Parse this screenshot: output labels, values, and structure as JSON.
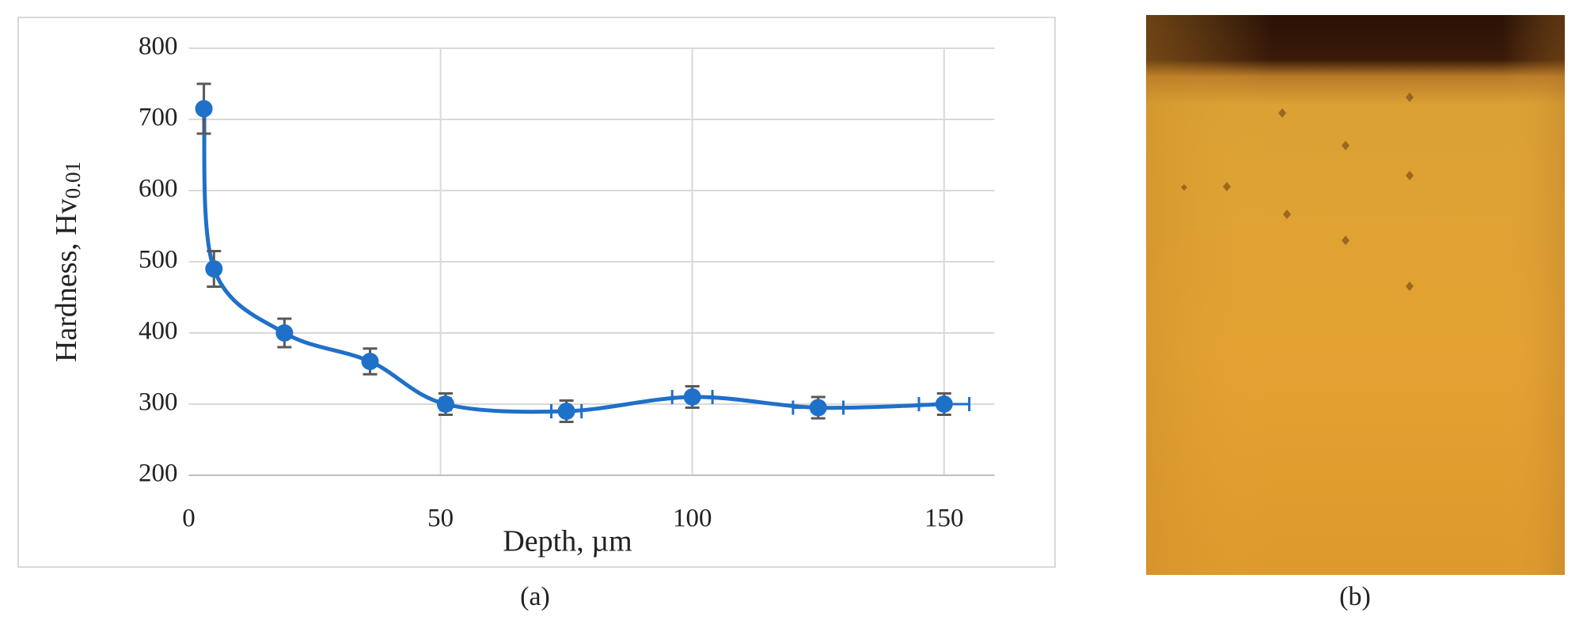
{
  "chart_data": {
    "type": "line",
    "x_label": "Depth,  µm",
    "y_label": {
      "main": "Hardness, Hv",
      "subscript": "0.01"
    },
    "x": [
      3,
      5,
      19,
      36,
      51,
      75,
      100,
      125,
      150
    ],
    "series": [
      {
        "color": "#1f70c8",
        "error_color": "#595959",
        "values": [
          715,
          490,
          400,
          360,
          300,
          290,
          310,
          295,
          300
        ],
        "y_errors": [
          35,
          25,
          20,
          18,
          15,
          15,
          15,
          15,
          15
        ],
        "x_errors": [
          0,
          0,
          0,
          0,
          1,
          3,
          4,
          5,
          5
        ]
      }
    ],
    "xlim": [
      0,
      160
    ],
    "xticks": [
      0,
      50,
      100,
      150
    ],
    "ylim": [
      200,
      800
    ],
    "yticks": [
      200,
      300,
      400,
      500,
      600,
      700,
      800
    ],
    "grid": true,
    "panel_labels": [
      "(a)",
      "(b)"
    ]
  }
}
